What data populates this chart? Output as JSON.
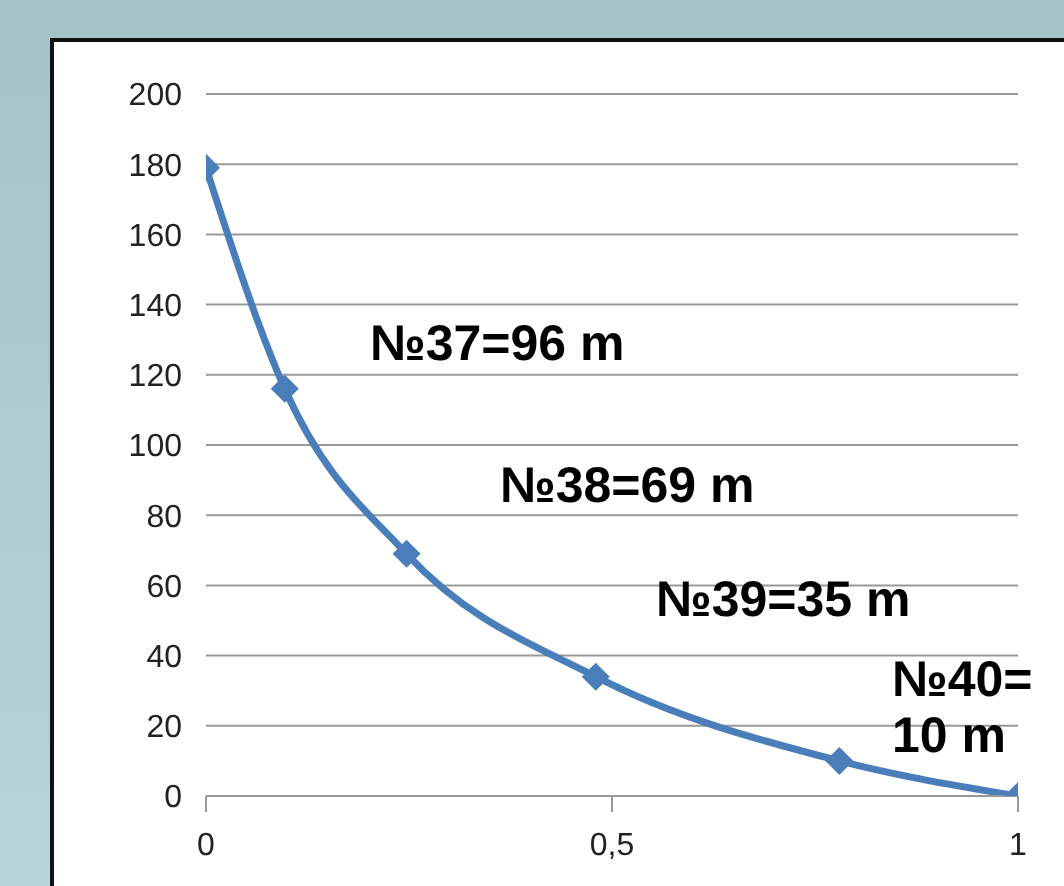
{
  "chart_data": {
    "type": "line",
    "x": [
      0,
      0.097,
      0.247,
      0.48,
      0.78,
      1
    ],
    "series": [
      {
        "color": "#4a7ebb",
        "values": [
          179,
          116,
          69,
          34,
          10,
          0
        ]
      }
    ],
    "xlim": [
      0,
      1
    ],
    "xticks": [
      0,
      {
        "value": 0.5,
        "label": "0,5"
      },
      1
    ],
    "ylim": [
      0,
      200
    ],
    "yticks": [
      0,
      20,
      40,
      60,
      80,
      100,
      120,
      140,
      160,
      180,
      200
    ],
    "grid": "y",
    "marker": "diamond",
    "line_style": "solid",
    "annotations": [
      "№37=96 m",
      "№38=69 m",
      "№39=35 m",
      "№40=10 m"
    ]
  }
}
